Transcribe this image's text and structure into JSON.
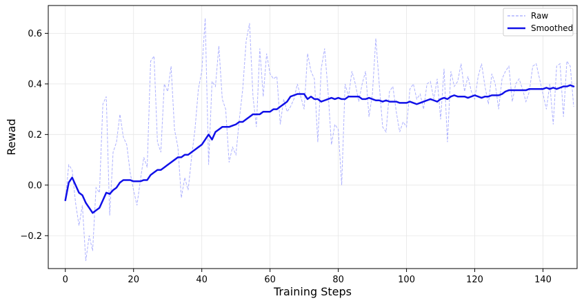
{
  "chart_data": {
    "type": "line",
    "title": "",
    "xlabel": "Training Steps",
    "ylabel": "Rewad",
    "xlim": [
      -5,
      150
    ],
    "ylim": [
      -0.33,
      0.71
    ],
    "xticks": [
      0,
      20,
      40,
      60,
      80,
      100,
      120,
      140
    ],
    "xtick_labels": [
      "0",
      "20",
      "40",
      "60",
      "80",
      "100",
      "120",
      "140"
    ],
    "yticks": [
      -0.2,
      0.0,
      0.2,
      0.4,
      0.6
    ],
    "ytick_labels": [
      "−0.2",
      "0.0",
      "0.2",
      "0.4",
      "0.6"
    ],
    "grid": true,
    "legend_position": "top-right",
    "series": [
      {
        "name": "Raw",
        "style": "dashed",
        "color": "#9fa3ff",
        "x": [
          0,
          1,
          2,
          3,
          4,
          5,
          6,
          7,
          8,
          9,
          10,
          11,
          12,
          13,
          14,
          15,
          16,
          17,
          18,
          19,
          20,
          21,
          22,
          23,
          24,
          25,
          26,
          27,
          28,
          29,
          30,
          31,
          32,
          33,
          34,
          35,
          36,
          37,
          38,
          39,
          40,
          41,
          42,
          43,
          44,
          45,
          46,
          47,
          48,
          49,
          50,
          51,
          52,
          53,
          54,
          55,
          56,
          57,
          58,
          59,
          60,
          61,
          62,
          63,
          64,
          65,
          66,
          67,
          68,
          69,
          70,
          71,
          72,
          73,
          74,
          75,
          76,
          77,
          78,
          79,
          80,
          81,
          82,
          83,
          84,
          85,
          86,
          87,
          88,
          89,
          90,
          91,
          92,
          93,
          94,
          95,
          96,
          97,
          98,
          99,
          100,
          101,
          102,
          103,
          104,
          105,
          106,
          107,
          108,
          109,
          110,
          111,
          112,
          113,
          114,
          115,
          116,
          117,
          118,
          119,
          120,
          121,
          122,
          123,
          124,
          125,
          126,
          127,
          128,
          129,
          130,
          131,
          132,
          133,
          134,
          135,
          136,
          137,
          138,
          139,
          140,
          141,
          142,
          143,
          144,
          145,
          146,
          147,
          148,
          149
        ],
        "values": [
          -0.06,
          0.08,
          0.06,
          -0.07,
          -0.16,
          -0.08,
          -0.3,
          -0.2,
          -0.26,
          -0.01,
          -0.03,
          0.32,
          0.35,
          -0.12,
          0.13,
          0.17,
          0.28,
          0.19,
          0.16,
          0.05,
          -0.02,
          -0.08,
          0.02,
          0.11,
          0.07,
          0.49,
          0.51,
          0.17,
          0.13,
          0.4,
          0.37,
          0.47,
          0.22,
          0.15,
          -0.05,
          0.03,
          -0.02,
          0.11,
          0.22,
          0.38,
          0.45,
          0.66,
          0.08,
          0.41,
          0.39,
          0.55,
          0.34,
          0.3,
          0.09,
          0.15,
          0.12,
          0.26,
          0.38,
          0.57,
          0.64,
          0.35,
          0.23,
          0.54,
          0.35,
          0.52,
          0.44,
          0.42,
          0.43,
          0.24,
          0.34,
          0.29,
          0.31,
          0.34,
          0.4,
          0.35,
          0.3,
          0.52,
          0.45,
          0.42,
          0.17,
          0.46,
          0.54,
          0.37,
          0.16,
          0.24,
          0.22,
          0.0,
          0.4,
          0.35,
          0.45,
          0.4,
          0.33,
          0.4,
          0.45,
          0.27,
          0.36,
          0.58,
          0.4,
          0.23,
          0.21,
          0.37,
          0.39,
          0.29,
          0.21,
          0.25,
          0.23,
          0.38,
          0.4,
          0.34,
          0.36,
          0.3,
          0.4,
          0.41,
          0.34,
          0.42,
          0.26,
          0.46,
          0.17,
          0.45,
          0.39,
          0.41,
          0.48,
          0.37,
          0.43,
          0.37,
          0.34,
          0.43,
          0.48,
          0.39,
          0.32,
          0.44,
          0.4,
          0.3,
          0.42,
          0.45,
          0.47,
          0.33,
          0.4,
          0.42,
          0.38,
          0.33,
          0.37,
          0.47,
          0.48,
          0.42,
          0.36,
          0.3,
          0.4,
          0.24,
          0.47,
          0.48,
          0.27,
          0.49,
          0.47,
          0.31
        ]
      },
      {
        "name": "Smoothed",
        "style": "solid",
        "color": "#1010e8",
        "x": [
          0,
          1,
          2,
          3,
          4,
          5,
          6,
          7,
          8,
          9,
          10,
          11,
          12,
          13,
          14,
          15,
          16,
          17,
          18,
          19,
          20,
          21,
          22,
          23,
          24,
          25,
          26,
          27,
          28,
          29,
          30,
          31,
          32,
          33,
          34,
          35,
          36,
          37,
          38,
          39,
          40,
          41,
          42,
          43,
          44,
          45,
          46,
          47,
          48,
          49,
          50,
          51,
          52,
          53,
          54,
          55,
          56,
          57,
          58,
          59,
          60,
          61,
          62,
          63,
          64,
          65,
          66,
          67,
          68,
          69,
          70,
          71,
          72,
          73,
          74,
          75,
          76,
          77,
          78,
          79,
          80,
          81,
          82,
          83,
          84,
          85,
          86,
          87,
          88,
          89,
          90,
          91,
          92,
          93,
          94,
          95,
          96,
          97,
          98,
          99,
          100,
          101,
          102,
          103,
          104,
          105,
          106,
          107,
          108,
          109,
          110,
          111,
          112,
          113,
          114,
          115,
          116,
          117,
          118,
          119,
          120,
          121,
          122,
          123,
          124,
          125,
          126,
          127,
          128,
          129,
          130,
          131,
          132,
          133,
          134,
          135,
          136,
          137,
          138,
          139,
          140,
          141,
          142,
          143,
          144,
          145,
          146,
          147,
          148,
          149
        ],
        "values": [
          -0.06,
          0.01,
          0.03,
          0.0,
          -0.03,
          -0.04,
          -0.07,
          -0.09,
          -0.11,
          -0.1,
          -0.09,
          -0.06,
          -0.03,
          -0.035,
          -0.02,
          -0.01,
          0.01,
          0.02,
          0.02,
          0.02,
          0.015,
          0.015,
          0.015,
          0.02,
          0.02,
          0.04,
          0.05,
          0.06,
          0.06,
          0.07,
          0.08,
          0.09,
          0.1,
          0.11,
          0.11,
          0.12,
          0.12,
          0.13,
          0.14,
          0.15,
          0.16,
          0.18,
          0.2,
          0.18,
          0.21,
          0.22,
          0.23,
          0.23,
          0.23,
          0.235,
          0.24,
          0.25,
          0.25,
          0.26,
          0.27,
          0.28,
          0.28,
          0.28,
          0.29,
          0.29,
          0.29,
          0.3,
          0.3,
          0.31,
          0.32,
          0.33,
          0.35,
          0.355,
          0.36,
          0.36,
          0.36,
          0.34,
          0.35,
          0.34,
          0.34,
          0.33,
          0.335,
          0.34,
          0.345,
          0.34,
          0.345,
          0.34,
          0.34,
          0.35,
          0.35,
          0.35,
          0.35,
          0.34,
          0.34,
          0.345,
          0.34,
          0.335,
          0.335,
          0.33,
          0.335,
          0.33,
          0.33,
          0.33,
          0.325,
          0.325,
          0.325,
          0.33,
          0.325,
          0.32,
          0.325,
          0.33,
          0.335,
          0.34,
          0.335,
          0.33,
          0.34,
          0.345,
          0.34,
          0.35,
          0.355,
          0.35,
          0.35,
          0.35,
          0.345,
          0.35,
          0.355,
          0.35,
          0.345,
          0.35,
          0.35,
          0.355,
          0.355,
          0.355,
          0.36,
          0.37,
          0.375,
          0.375,
          0.375,
          0.375,
          0.375,
          0.375,
          0.38,
          0.38,
          0.38,
          0.38,
          0.38,
          0.385,
          0.38,
          0.385,
          0.38,
          0.385,
          0.39,
          0.39,
          0.395,
          0.39
        ]
      }
    ]
  }
}
